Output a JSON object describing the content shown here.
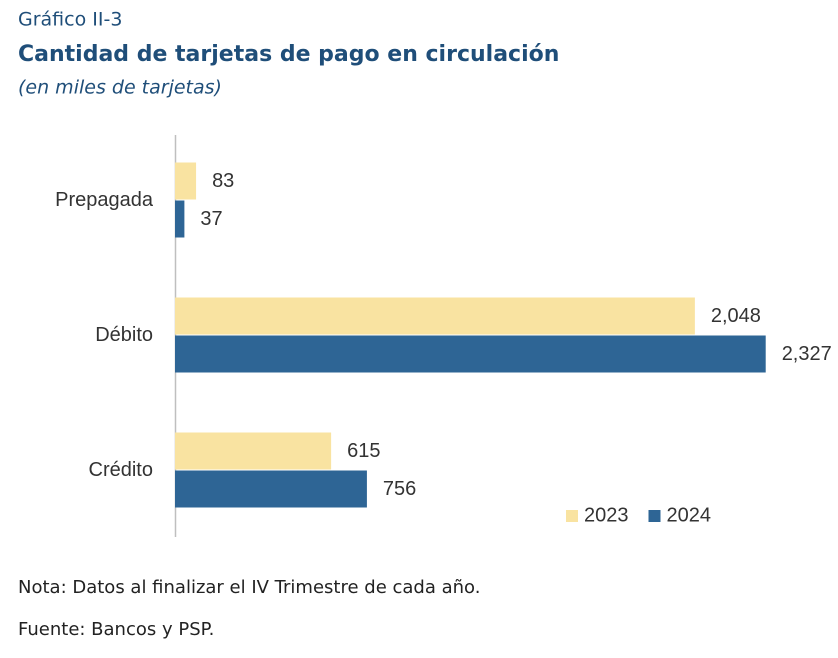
{
  "header": {
    "number": "Gráfico II-3",
    "title": "Cantidad de tarjetas de pago en circulación",
    "subtitle": "(en miles de tarjetas)"
  },
  "chart_data": {
    "type": "hbar",
    "categories": [
      "Prepagada",
      "Débito",
      "Crédito"
    ],
    "series": [
      {
        "name": "2023",
        "color": "#f9e3a1",
        "values": [
          83,
          2048,
          615
        ],
        "value_labels": [
          "83",
          "2,048",
          "615"
        ]
      },
      {
        "name": "2024",
        "color": "#2e6595",
        "values": [
          37,
          2327,
          756
        ],
        "value_labels": [
          "37",
          "2,327",
          "756"
        ]
      }
    ],
    "xlim": [
      0,
      2600
    ],
    "legend": "lower right"
  },
  "notes": [
    "Nota: Datos al finalizar el IV Trimestre de cada año.",
    "Fuente: Bancos y PSP."
  ]
}
